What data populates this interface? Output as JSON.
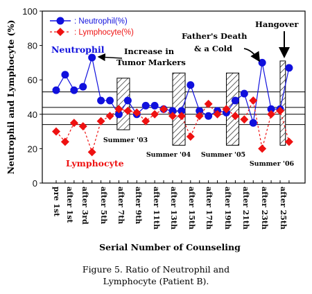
{
  "chart_data": {
    "type": "line",
    "ylabel": "Neutrophil and Lymphocyte (%)",
    "xlabel": "Serial Number of Counseling",
    "ylim": [
      0,
      100
    ],
    "yticks": [
      0,
      20,
      40,
      60,
      80,
      100
    ],
    "category_labels": [
      "pre 1st",
      "after 1st",
      "after 3rd",
      "after 5th",
      "after 7th",
      "after 9th",
      "after 11th",
      "after 13th",
      "after 15th",
      "after 17th",
      "after 19th",
      "after 21th",
      "after 23th",
      "after 25th"
    ],
    "x": [
      0,
      1,
      2,
      3,
      4,
      5,
      6,
      7,
      8,
      9,
      10,
      11,
      12,
      13,
      14,
      15,
      16,
      17,
      18,
      19,
      20,
      21,
      22,
      23,
      24,
      25,
      26
    ],
    "series": [
      {
        "name": ": Neutrophil(%)",
        "color": "#1010dd",
        "marker": "circle",
        "line": "solid",
        "values": [
          54,
          63,
          54,
          56,
          73,
          48,
          48,
          40,
          48,
          40,
          45,
          45,
          43,
          42,
          42,
          57,
          42,
          39,
          42,
          41,
          48,
          52,
          35,
          70,
          43,
          43,
          67
        ]
      },
      {
        "name": ": Lymphocyte(%)",
        "color": "#ee1111",
        "marker": "diamond",
        "line": "dashed",
        "values": [
          30,
          24,
          35,
          33,
          18,
          36,
          39,
          43,
          42,
          41,
          36,
          40,
          43,
          39,
          39,
          27,
          39,
          46,
          40,
          43,
          39,
          37,
          48,
          20,
          40,
          42,
          24
        ]
      }
    ],
    "reference_lines": [
      53,
      44,
      40,
      34
    ],
    "shaded_bands": [
      {
        "x_from": 6.8,
        "x_to": 8.2,
        "y_from": 31,
        "y_to": 61,
        "label": "Summer '03"
      },
      {
        "x_from": 13.0,
        "x_to": 14.4,
        "y_from": 22,
        "y_to": 64,
        "label": "Summer '04"
      },
      {
        "x_from": 19.0,
        "x_to": 20.4,
        "y_from": 22,
        "y_to": 64,
        "label": "Summer '05"
      },
      {
        "x_from": 25.0,
        "x_to": 25.6,
        "y_from": 22,
        "y_to": 71,
        "label": "Summer '06"
      }
    ],
    "annotations": [
      {
        "text": "Neutrophil",
        "color": "#1010dd"
      },
      {
        "text": "Lymphocyte",
        "color": "#ee1111"
      },
      {
        "text": "Increase in",
        "color": "#000000"
      },
      {
        "text": "Tumor Markers",
        "color": "#000000"
      },
      {
        "text": "Father's Death",
        "color": "#000000"
      },
      {
        "text": "& a Cold",
        "color": "#000000"
      },
      {
        "text": "Hangover",
        "color": "#000000"
      }
    ]
  },
  "caption": {
    "line1": "Figure 5. Ratio of Neutrophil and",
    "line2": "Lymphocyte (Patient B)."
  }
}
